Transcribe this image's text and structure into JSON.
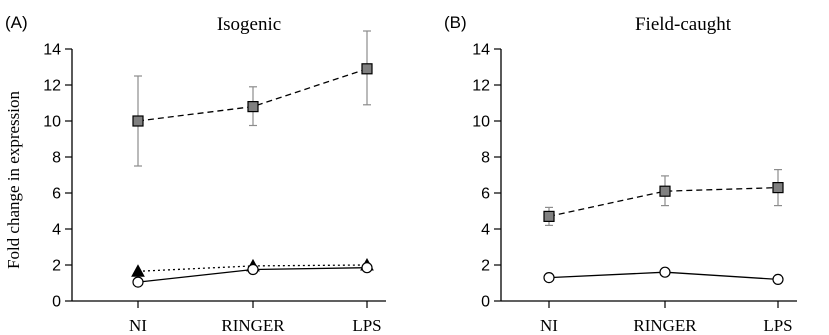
{
  "figure": {
    "ylabel": "Fold change in expression"
  },
  "chart_data": [
    {
      "type": "line",
      "panel_label": "(A)",
      "title": "Isogenic",
      "categories": [
        "NI",
        "RINGER",
        "LPS"
      ],
      "ylabel": "Fold change in expression",
      "ylim": [
        0,
        14
      ],
      "yticks": [
        "0",
        "2",
        "4",
        "6",
        "8",
        "10",
        "12",
        "14"
      ],
      "grid": false,
      "series": [
        {
          "marker": "square",
          "line": "dashed",
          "color": "#808080",
          "values": [
            10.0,
            10.8,
            12.9
          ],
          "error_low": [
            7.5,
            9.75,
            10.9
          ],
          "error_high": [
            12.5,
            11.9,
            15.0
          ]
        },
        {
          "marker": "triangle",
          "line": "dotted",
          "color": "#000000",
          "values": [
            1.65,
            1.95,
            2.0
          ]
        },
        {
          "marker": "circle-open",
          "line": "solid",
          "color": "#ffffff",
          "values": [
            1.05,
            1.75,
            1.85
          ]
        }
      ]
    },
    {
      "type": "line",
      "panel_label": "(B)",
      "title": "Field-caught",
      "categories": [
        "NI",
        "RINGER",
        "LPS"
      ],
      "ylim": [
        0,
        14
      ],
      "yticks": [
        "0",
        "2",
        "4",
        "6",
        "8",
        "10",
        "12",
        "14"
      ],
      "grid": false,
      "series": [
        {
          "marker": "square",
          "line": "dashed",
          "color": "#808080",
          "values": [
            4.7,
            6.1,
            6.3
          ],
          "error_low": [
            4.2,
            5.3,
            5.3
          ],
          "error_high": [
            5.2,
            6.95,
            7.3
          ]
        },
        {
          "marker": "circle-open",
          "line": "solid",
          "color": "#ffffff",
          "values": [
            1.3,
            1.6,
            1.2
          ]
        }
      ]
    }
  ]
}
